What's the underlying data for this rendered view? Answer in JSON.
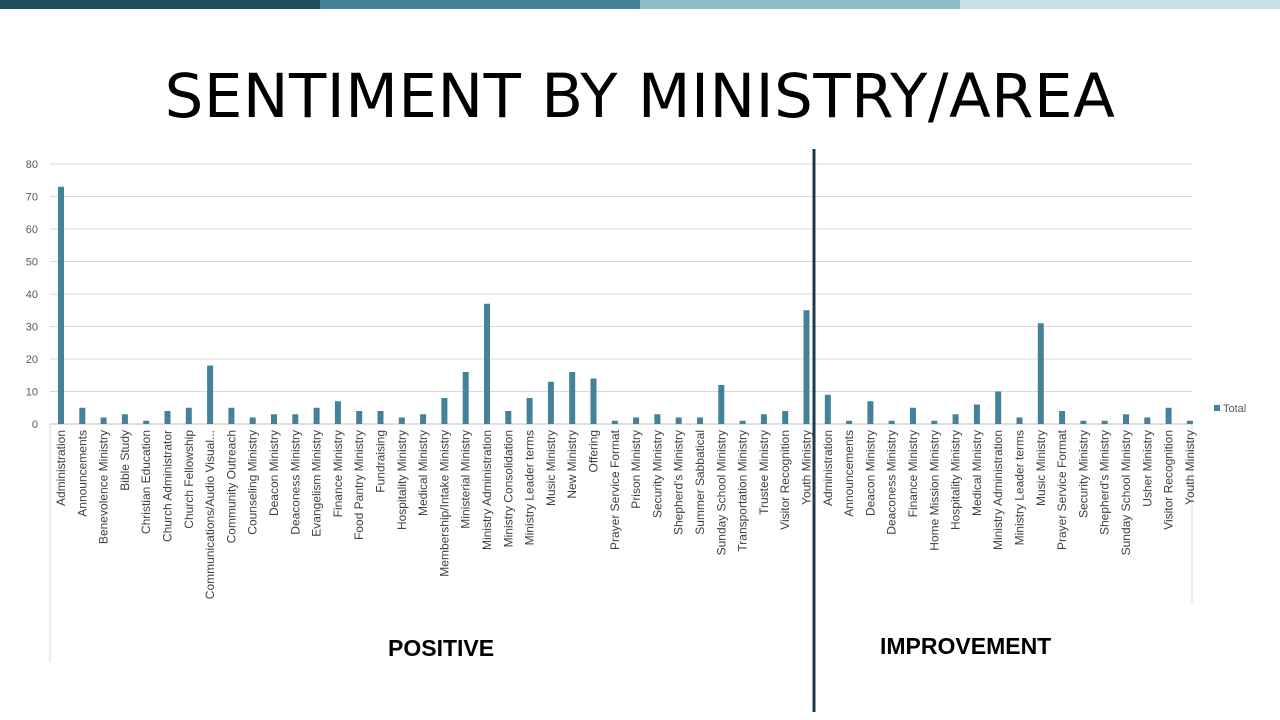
{
  "header": {
    "title": "SENTIMENT BY MINISTRY/AREA",
    "accent_colors": [
      "#1f4e5f",
      "#44819b",
      "#8fbccb",
      "#c7e0e7"
    ]
  },
  "sections": {
    "positive_label": "POSITIVE",
    "improvement_label": "IMPROVEMENT",
    "divider_color": "#1b3a4b"
  },
  "chart_data": {
    "type": "bar",
    "title": "",
    "xlabel": "",
    "ylabel": "",
    "ylim": [
      0,
      80
    ],
    "yticks": [
      0,
      10,
      20,
      30,
      40,
      50,
      60,
      70,
      80
    ],
    "grid": true,
    "legend_position": "right",
    "bar_color": "#44819b",
    "categories": [
      "Administration",
      "Announcements",
      "Benevolence Ministry",
      "Bible Study",
      "Christian Education",
      "Church Administrator",
      "Church Fellowship",
      "Communications/Audio Visual...",
      "Community Outreach",
      "Counseling Ministry",
      "Deacon Ministry",
      "Deaconess Ministry",
      "Evangelism Ministry",
      "Finance Ministry",
      "Food Pantry Ministry",
      "Fundraising",
      "Hospitality Ministry",
      "Medical Ministry",
      "Membership/Intake Ministry",
      "Ministerial Ministry",
      "Ministry Administration",
      "Ministry Consolidation",
      "Ministry Leader terms",
      "Music Ministry",
      "New Ministry",
      "Offering",
      "Prayer Service Format",
      "Prison Ministry",
      "Security Ministry",
      "Shepherd's Ministry",
      "Summer Sabbatical",
      "Sunday School Ministry",
      "Transportation Ministry",
      "Trustee Ministry",
      "Visitor Recognition",
      "Youth Ministry",
      "Administration",
      "Announcements",
      "Deacon Ministry",
      "Deaconess Ministry",
      "Finance Ministry",
      "Home Mission Ministry",
      "Hospitality Ministry",
      "Medical Ministry",
      "Ministry Administration",
      "Ministry Leader terms",
      "Music Ministry",
      "Prayer Service Format",
      "Security Ministry",
      "Shepherd's Ministry",
      "Sunday School Ministry",
      "Usher Ministry",
      "Visitor Recognition",
      "Youth Ministry"
    ],
    "series": [
      {
        "name": "Total",
        "values": [
          73,
          5,
          2,
          3,
          1,
          4,
          5,
          18,
          5,
          2,
          3,
          3,
          5,
          7,
          4,
          4,
          2,
          3,
          8,
          16,
          37,
          4,
          8,
          13,
          16,
          14,
          1,
          2,
          3,
          2,
          2,
          12,
          1,
          3,
          4,
          35,
          9,
          1,
          7,
          1,
          5,
          1,
          3,
          6,
          10,
          2,
          31,
          4,
          1,
          1,
          3,
          2,
          5,
          1
        ]
      }
    ],
    "group_split_index": 36
  }
}
